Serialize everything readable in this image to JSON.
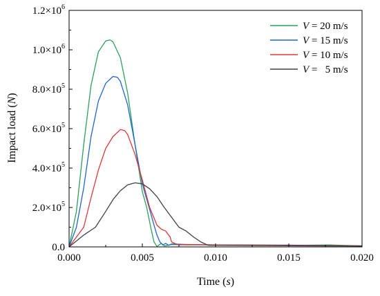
{
  "chart_data": {
    "type": "line",
    "xlabel": {
      "prefix": "Time (",
      "var": "s",
      "suffix": ")"
    },
    "ylabel": {
      "prefix": "Impact load (",
      "var": "N",
      "suffix": ")"
    },
    "xlim": [
      0,
      0.02
    ],
    "ylim": [
      0,
      1200000
    ],
    "x_ticks": [
      {
        "value": 0,
        "label": "0.000"
      },
      {
        "value": 0.005,
        "label": "0.005"
      },
      {
        "value": 0.01,
        "label": "0.010"
      },
      {
        "value": 0.015,
        "label": "0.015"
      },
      {
        "value": 0.02,
        "label": "0.020"
      }
    ],
    "y_ticks": [
      {
        "value": 0,
        "mant": "0.0",
        "exp": ""
      },
      {
        "value": 200000,
        "mant": "2.0×10",
        "exp": "5"
      },
      {
        "value": 400000,
        "mant": "4.0×10",
        "exp": "5"
      },
      {
        "value": 600000,
        "mant": "6.0×10",
        "exp": "5"
      },
      {
        "value": 800000,
        "mant": "8.0×10",
        "exp": "5"
      },
      {
        "value": 1000000,
        "mant": "1.0×10",
        "exp": "6"
      },
      {
        "value": 1200000,
        "mant": "1.2×10",
        "exp": "6"
      }
    ],
    "grid": false,
    "legend_position": "top-right",
    "series": [
      {
        "name": "V = 20 m/s",
        "legend_var": "V",
        "legend_text": " = 20 m/s",
        "color": "#2ca05a",
        "x": [
          0,
          0.0005,
          0.001,
          0.0015,
          0.002,
          0.0025,
          0.0028,
          0.003,
          0.0035,
          0.004,
          0.0045,
          0.005,
          0.0053,
          0.0056,
          0.0058,
          0.006,
          0.0061,
          0.0063,
          0.0065,
          0.007,
          0.008,
          0.01,
          0.015,
          0.0178,
          0.02
        ],
        "y": [
          0,
          180000,
          520000,
          820000,
          990000,
          1045000,
          1050000,
          1040000,
          960000,
          780000,
          520000,
          280000,
          200000,
          90000,
          25000,
          2000,
          8000,
          18000,
          5000,
          12000,
          10000,
          10000,
          8000,
          10000,
          5000
        ]
      },
      {
        "name": "V = 15 m/s",
        "legend_var": "V",
        "legend_text": " = 15 m/s",
        "color": "#1f64d2",
        "x": [
          0,
          0.0005,
          0.001,
          0.0015,
          0.002,
          0.0025,
          0.003,
          0.0033,
          0.0035,
          0.004,
          0.0045,
          0.005,
          0.0055,
          0.0058,
          0.006,
          0.0062,
          0.0064,
          0.0066,
          0.0068,
          0.007,
          0.008,
          0.01,
          0.015,
          0.02
        ],
        "y": [
          0,
          100000,
          300000,
          560000,
          740000,
          830000,
          865000,
          860000,
          840000,
          720000,
          520000,
          320000,
          190000,
          110000,
          60000,
          25000,
          10000,
          18000,
          8000,
          15000,
          12000,
          10000,
          9000,
          5000
        ]
      },
      {
        "name": "V = 10 m/s",
        "legend_var": "V",
        "legend_text": " = 10 m/s",
        "color": "#e23535",
        "x": [
          0,
          0.0005,
          0.001,
          0.0015,
          0.002,
          0.0025,
          0.003,
          0.0035,
          0.0038,
          0.004,
          0.0045,
          0.005,
          0.0055,
          0.006,
          0.0063,
          0.0066,
          0.0069,
          0.007,
          0.0072,
          0.0075,
          0.008,
          0.01,
          0.015,
          0.02
        ],
        "y": [
          0,
          50000,
          100000,
          250000,
          390000,
          500000,
          560000,
          595000,
          590000,
          570000,
          470000,
          340000,
          200000,
          110000,
          90000,
          80000,
          50000,
          25000,
          18000,
          10000,
          12000,
          10000,
          8000,
          5000
        ]
      },
      {
        "name": "V =   5 m/s",
        "legend_var": "V",
        "legend_text": " =   5 m/s",
        "color": "#404040",
        "x": [
          0,
          0.001,
          0.0018,
          0.0025,
          0.003,
          0.0035,
          0.004,
          0.0045,
          0.005,
          0.0055,
          0.006,
          0.0065,
          0.007,
          0.0075,
          0.008,
          0.0085,
          0.009,
          0.0095,
          0.01,
          0.015,
          0.02
        ],
        "y": [
          0,
          60000,
          100000,
          180000,
          240000,
          285000,
          315000,
          325000,
          320000,
          295000,
          255000,
          200000,
          150000,
          100000,
          80000,
          50000,
          25000,
          8000,
          8000,
          6000,
          4000
        ]
      }
    ]
  }
}
